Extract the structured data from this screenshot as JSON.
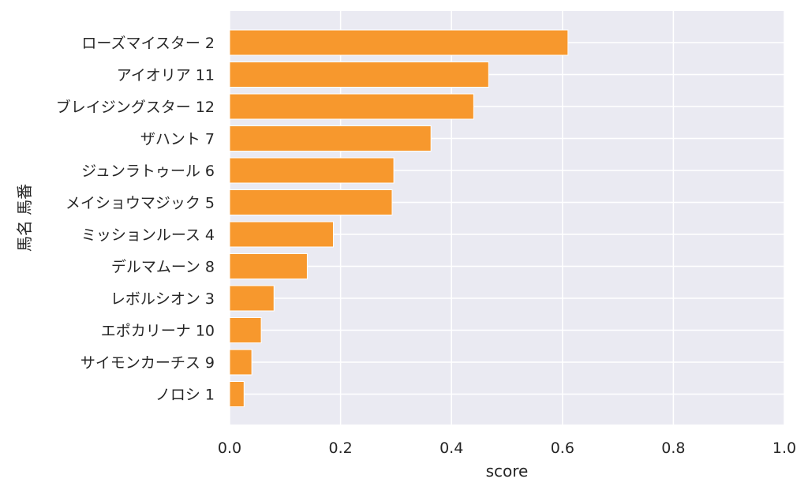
{
  "chart_data": {
    "type": "bar",
    "orientation": "horizontal",
    "categories": [
      "ローズマイスター 2",
      "アイオリア 11",
      "ブレイジングスター 12",
      "ザハント 7",
      "ジュンラトゥール 6",
      "メイショウマジック 5",
      "ミッションルース 4",
      "デルマムーン 8",
      "レボルシオン 3",
      "エポカリーナ 10",
      "サイモンカーチス 9",
      "ノロシ 1"
    ],
    "values": [
      0.61,
      0.467,
      0.44,
      0.363,
      0.296,
      0.293,
      0.187,
      0.14,
      0.08,
      0.057,
      0.04,
      0.026
    ],
    "xlabel": "score",
    "ylabel": "馬名 馬番",
    "xlim": [
      0.0,
      1.0
    ],
    "xticks": [
      "0.0",
      "0.2",
      "0.4",
      "0.6",
      "0.8",
      "1.0"
    ],
    "grid": true,
    "colors": {
      "bar": "#f7982d",
      "background": "#eaeaf2",
      "grid": "#ffffff",
      "text": "#262626"
    }
  }
}
